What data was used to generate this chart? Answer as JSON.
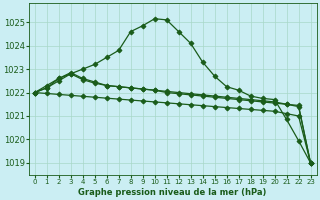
{
  "background_color": "#cbeef3",
  "grid_color": "#a8d8c8",
  "line_color": "#1a5c1a",
  "title": "Graphe pression niveau de la mer (hPa)",
  "xlim": [
    -0.5,
    23.5
  ],
  "ylim": [
    1018.5,
    1025.8
  ],
  "yticks": [
    1019,
    1020,
    1021,
    1022,
    1023,
    1024,
    1025
  ],
  "xticks": [
    0,
    1,
    2,
    3,
    4,
    5,
    6,
    7,
    8,
    9,
    10,
    11,
    12,
    13,
    14,
    15,
    16,
    17,
    18,
    19,
    20,
    21,
    22,
    23
  ],
  "series": [
    {
      "x": [
        0,
        1,
        2,
        3,
        4,
        5,
        6,
        7,
        8,
        9,
        10,
        11,
        12,
        13,
        14,
        15,
        16,
        17,
        18,
        19,
        20,
        21,
        22,
        23
      ],
      "y": [
        1022.0,
        1022.2,
        1022.5,
        1022.8,
        1023.0,
        1023.2,
        1023.5,
        1023.8,
        1024.6,
        1024.85,
        1025.15,
        1025.1,
        1024.6,
        1024.1,
        1023.3,
        1022.7,
        1022.25,
        1022.1,
        1021.85,
        1021.75,
        1021.7,
        1020.85,
        1019.95,
        1019.0
      ],
      "marker": "D",
      "markersize": 2.5
    },
    {
      "x": [
        0,
        1,
        2,
        3,
        4,
        5,
        6,
        7,
        8,
        9,
        10,
        11,
        12,
        13,
        14,
        15,
        16,
        17,
        18,
        19,
        20,
        21,
        22,
        23
      ],
      "y": [
        1022.0,
        1022.3,
        1022.6,
        1022.85,
        1022.6,
        1022.45,
        1022.3,
        1022.25,
        1022.2,
        1022.15,
        1022.1,
        1022.05,
        1022.0,
        1021.95,
        1021.9,
        1021.85,
        1021.8,
        1021.75,
        1021.7,
        1021.65,
        1021.6,
        1021.5,
        1021.4,
        1019.0
      ],
      "marker": "D",
      "markersize": 2.5
    },
    {
      "x": [
        0,
        1,
        2,
        3,
        4,
        5,
        6,
        7,
        8,
        9,
        10,
        11,
        12,
        13,
        14,
        15,
        16,
        17,
        18,
        19,
        20,
        21,
        22,
        23
      ],
      "y": [
        1022.0,
        1022.2,
        1022.6,
        1022.8,
        1022.55,
        1022.4,
        1022.3,
        1022.25,
        1022.2,
        1022.15,
        1022.1,
        1022.0,
        1021.95,
        1021.9,
        1021.85,
        1021.8,
        1021.75,
        1021.7,
        1021.65,
        1021.6,
        1021.55,
        1021.5,
        1021.45,
        1019.0
      ],
      "marker": "D",
      "markersize": 2.5
    },
    {
      "x": [
        0,
        1,
        2,
        3,
        4,
        5,
        6,
        7,
        8,
        9,
        10,
        11,
        12,
        13,
        14,
        15,
        16,
        17,
        18,
        19,
        20,
        21,
        22,
        23
      ],
      "y": [
        1022.0,
        1021.96,
        1021.92,
        1021.88,
        1021.84,
        1021.8,
        1021.76,
        1021.72,
        1021.68,
        1021.64,
        1021.6,
        1021.56,
        1021.52,
        1021.48,
        1021.44,
        1021.4,
        1021.36,
        1021.32,
        1021.28,
        1021.24,
        1021.2,
        1021.1,
        1021.0,
        1019.0
      ],
      "marker": "D",
      "markersize": 2.5
    }
  ]
}
